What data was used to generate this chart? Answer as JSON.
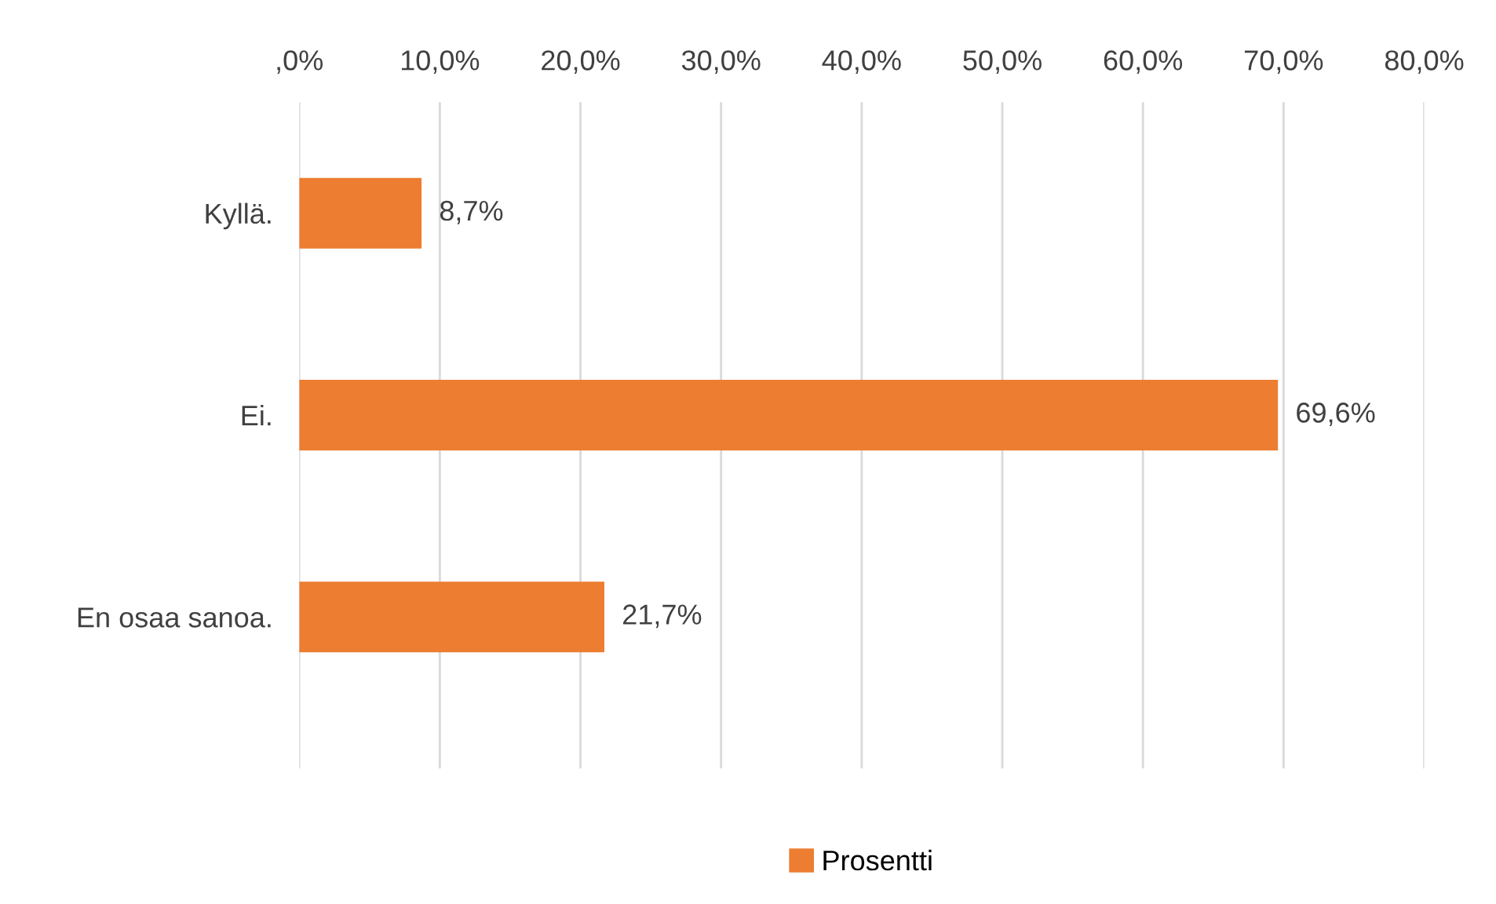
{
  "chart_data": {
    "type": "bar",
    "orientation": "horizontal",
    "categories": [
      "Kyllä.",
      "Ei.",
      "En osaa sanoa."
    ],
    "series": [
      {
        "name": "Prosentti",
        "color": "#ed7d31",
        "values": [
          8.7,
          69.6,
          21.7
        ],
        "value_labels": [
          "8,7%",
          "69,6%",
          "21,7%"
        ]
      }
    ],
    "xlim": [
      0,
      80
    ],
    "xticks": [
      {
        "value": 0,
        "label": ",0%"
      },
      {
        "value": 10,
        "label": "10,0%"
      },
      {
        "value": 20,
        "label": "20,0%"
      },
      {
        "value": 30,
        "label": "30,0%"
      },
      {
        "value": 40,
        "label": "40,0%"
      },
      {
        "value": 50,
        "label": "50,0%"
      },
      {
        "value": 60,
        "label": "60,0%"
      },
      {
        "value": 70,
        "label": "70,0%"
      },
      {
        "value": 80,
        "label": "80,0%"
      }
    ],
    "grid": "x",
    "legend": "bottom"
  }
}
